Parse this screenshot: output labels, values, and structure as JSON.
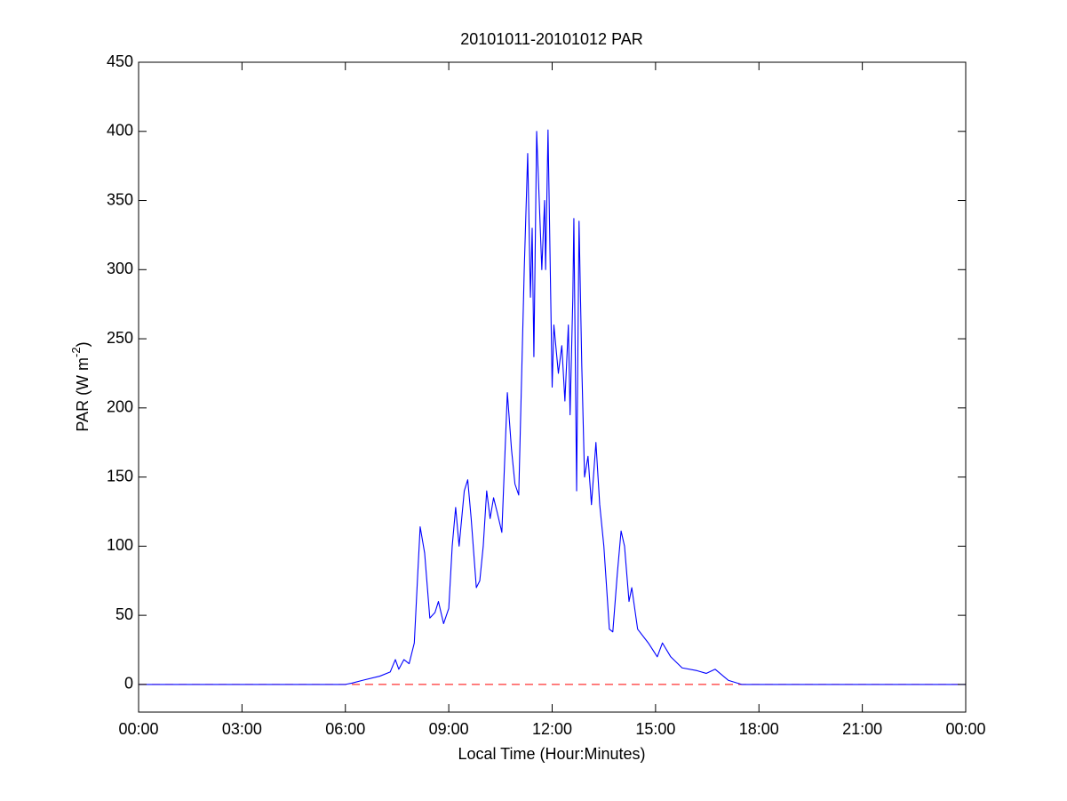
{
  "chart_data": {
    "type": "line",
    "title": "20101011-20101012 PAR",
    "xlabel": "Local Time (Hour:Minutes)",
    "ylabel": {
      "text": "PAR (W m",
      "superscript": "-2",
      "suffix": ")"
    },
    "xlim": [
      0,
      24
    ],
    "ylim": [
      -20,
      450
    ],
    "xticks": [
      {
        "value": 0,
        "label": "00:00"
      },
      {
        "value": 3,
        "label": "03:00"
      },
      {
        "value": 6,
        "label": "06:00"
      },
      {
        "value": 9,
        "label": "09:00"
      },
      {
        "value": 12,
        "label": "12:00"
      },
      {
        "value": 15,
        "label": "15:00"
      },
      {
        "value": 18,
        "label": "18:00"
      },
      {
        "value": 21,
        "label": "21:00"
      },
      {
        "value": 24,
        "label": "00:00"
      }
    ],
    "yticks": [
      0,
      50,
      100,
      150,
      200,
      250,
      300,
      350,
      400,
      450
    ],
    "grid": false,
    "reference_lines": [
      {
        "value": 0,
        "color": "#ff0000",
        "dashed": true
      }
    ],
    "series": [
      {
        "color": "#0000ff",
        "x": [
          0,
          6,
          6.2,
          6.5,
          7,
          7.3,
          7.45,
          7.55,
          7.7,
          7.85,
          8,
          8.1,
          8.17,
          8.3,
          8.45,
          8.6,
          8.7,
          8.85,
          9,
          9.1,
          9.2,
          9.3,
          9.45,
          9.55,
          9.65,
          9.8,
          9.9,
          10,
          10.1,
          10.2,
          10.3,
          10.4,
          10.54,
          10.7,
          10.82,
          10.92,
          11.03,
          11.19,
          11.29,
          11.37,
          11.42,
          11.47,
          11.55,
          11.7,
          11.78,
          11.81,
          11.88,
          12,
          12.05,
          12.18,
          12.28,
          12.37,
          12.47,
          12.52,
          12.6,
          12.63,
          12.71,
          12.78,
          12.86,
          12.94,
          13.04,
          13.14,
          13.27,
          13.38,
          13.5,
          13.66,
          13.76,
          13.89,
          14,
          14.1,
          14.23,
          14.31,
          14.48,
          14.79,
          15.05,
          15.2,
          15.44,
          15.77,
          16.2,
          16.47,
          16.73,
          17.11,
          17.5,
          24
        ],
        "values": [
          0,
          0,
          1,
          3,
          6,
          9,
          18,
          11,
          18,
          15,
          30,
          80,
          114,
          95,
          48,
          52,
          60,
          44,
          55,
          100,
          128,
          100,
          140,
          148,
          120,
          70,
          75,
          100,
          140,
          120,
          135,
          125,
          110,
          211,
          170,
          145,
          137,
          300,
          384,
          280,
          330,
          237,
          400,
          300,
          350,
          300,
          401,
          215,
          260,
          225,
          245,
          205,
          260,
          195,
          280,
          337,
          140,
          335,
          230,
          150,
          165,
          130,
          175,
          130,
          100,
          40,
          38,
          80,
          111,
          100,
          60,
          70,
          40,
          30,
          20,
          30,
          20,
          12,
          10,
          8,
          11,
          3,
          0,
          0
        ]
      }
    ]
  }
}
